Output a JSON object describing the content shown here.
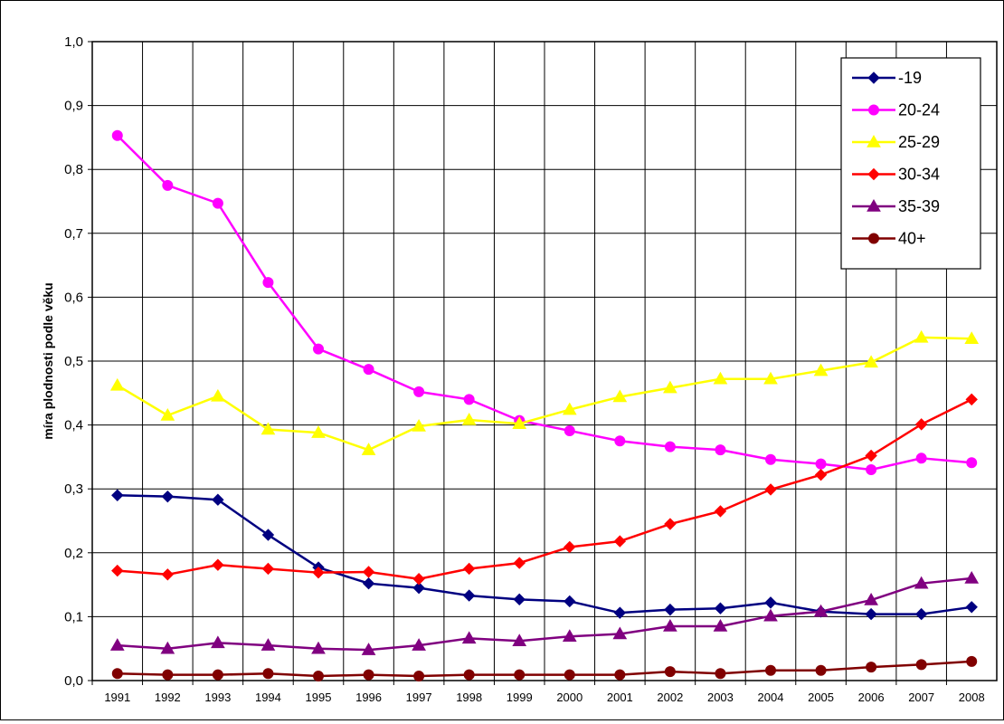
{
  "chart_data": {
    "type": "line",
    "title": "",
    "xlabel": "",
    "ylabel": "míra plodnosti podle věku",
    "x": [
      "1991",
      "1992",
      "1993",
      "1994",
      "1995",
      "1996",
      "1997",
      "1998",
      "1999",
      "2000",
      "2001",
      "2002",
      "2003",
      "2004",
      "2005",
      "2006",
      "2007",
      "2008"
    ],
    "ylim": [
      0,
      1.0
    ],
    "yticks": [
      "0,0",
      "0,1",
      "0,2",
      "0,3",
      "0,4",
      "0,5",
      "0,6",
      "0,7",
      "0,8",
      "0,9",
      "1,0"
    ],
    "grid": true,
    "legend_position": "top-right",
    "series": [
      {
        "name": "-19",
        "color": "#000080",
        "marker": "diamond",
        "values": [
          0.29,
          0.288,
          0.283,
          0.228,
          0.177,
          0.152,
          0.145,
          0.133,
          0.127,
          0.124,
          0.106,
          0.111,
          0.113,
          0.122,
          0.108,
          0.104,
          0.104,
          0.115
        ]
      },
      {
        "name": "20-24",
        "color": "#FF00FF",
        "marker": "circle",
        "values": [
          0.853,
          0.775,
          0.747,
          0.623,
          0.519,
          0.487,
          0.452,
          0.44,
          0.407,
          0.391,
          0.375,
          0.366,
          0.361,
          0.346,
          0.339,
          0.33,
          0.348,
          0.341
        ]
      },
      {
        "name": "25-29",
        "color": "#FFFF00",
        "marker": "triangle",
        "values": [
          0.462,
          0.415,
          0.445,
          0.393,
          0.388,
          0.361,
          0.398,
          0.408,
          0.402,
          0.424,
          0.444,
          0.458,
          0.472,
          0.472,
          0.485,
          0.498,
          0.537,
          0.535
        ]
      },
      {
        "name": "30-34",
        "color": "#FF0000",
        "marker": "diamond",
        "values": [
          0.172,
          0.166,
          0.181,
          0.175,
          0.169,
          0.17,
          0.159,
          0.175,
          0.184,
          0.209,
          0.218,
          0.245,
          0.265,
          0.299,
          0.322,
          0.352,
          0.401,
          0.44
        ]
      },
      {
        "name": "35-39",
        "color": "#800080",
        "marker": "triangle",
        "values": [
          0.055,
          0.05,
          0.059,
          0.055,
          0.05,
          0.048,
          0.055,
          0.066,
          0.062,
          0.069,
          0.073,
          0.085,
          0.085,
          0.101,
          0.108,
          0.126,
          0.152,
          0.16
        ]
      },
      {
        "name": "40+",
        "color": "#800000",
        "marker": "circle",
        "values": [
          0.011,
          0.009,
          0.009,
          0.011,
          0.007,
          0.009,
          0.007,
          0.009,
          0.009,
          0.009,
          0.009,
          0.014,
          0.011,
          0.016,
          0.016,
          0.021,
          0.025,
          0.03
        ]
      }
    ]
  }
}
